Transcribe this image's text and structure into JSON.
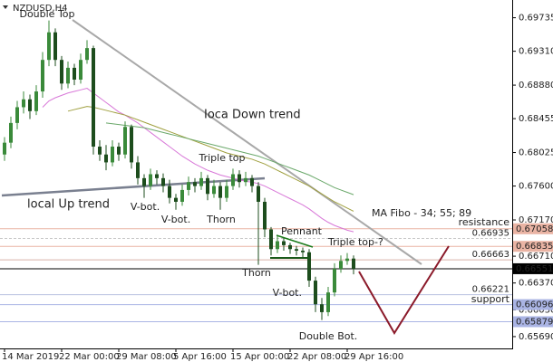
{
  "chart_data": {
    "type": "candlestick",
    "title": "NZDUSD,H4",
    "up_color": "#3a8a3a",
    "down_color": "#1d4d1d",
    "categories": [
      "14 Mar 2019",
      null,
      null,
      null,
      null,
      null,
      null,
      null,
      null,
      "22 Mar 00:00",
      null,
      null,
      null,
      null,
      null,
      null,
      null,
      null,
      "29 Mar 08:00",
      null,
      null,
      null,
      null,
      null,
      null,
      null,
      null,
      "5 Apr 16:00",
      null,
      null,
      null,
      null,
      null,
      null,
      null,
      null,
      "15 Apr 00:00",
      null,
      null,
      null,
      null,
      null,
      null,
      null,
      null,
      "22 Apr 08:00",
      null,
      null,
      null,
      null,
      null,
      null,
      null,
      null,
      "29 Apr 16:00",
      null
    ],
    "open": [
      0.68,
      0.6815,
      0.684,
      0.686,
      0.687,
      0.6855,
      0.688,
      0.692,
      0.6955,
      0.692,
      0.689,
      0.691,
      0.6895,
      0.692,
      0.6935,
      0.681,
      0.68,
      0.679,
      0.681,
      0.68,
      0.6835,
      0.679,
      0.677,
      0.676,
      0.6775,
      0.677,
      0.676,
      0.6745,
      0.674,
      0.6755,
      0.6765,
      0.676,
      0.677,
      0.675,
      0.676,
      0.6745,
      0.676,
      0.6775,
      0.6765,
      0.677,
      0.676,
      0.674,
      0.6705,
      0.668,
      0.669,
      0.6685,
      0.668,
      0.6678,
      0.6676,
      0.664,
      0.661,
      0.66,
      0.6625,
      0.6655,
      0.6665,
      0.6668
    ],
    "high": [
      0.6822,
      0.6848,
      0.6868,
      0.688,
      0.6876,
      0.6888,
      0.693,
      0.697,
      0.696,
      0.6925,
      0.6918,
      0.6915,
      0.6928,
      0.6945,
      0.6938,
      0.6818,
      0.6812,
      0.6818,
      0.6815,
      0.6842,
      0.6838,
      0.6798,
      0.6775,
      0.6782,
      0.678,
      0.6776,
      0.6768,
      0.675,
      0.6762,
      0.6772,
      0.677,
      0.6778,
      0.6774,
      0.6768,
      0.6765,
      0.6768,
      0.6782,
      0.678,
      0.6778,
      0.6774,
      0.6765,
      0.6745,
      0.6708,
      0.6698,
      0.6694,
      0.6688,
      0.6684,
      0.6682,
      0.668,
      0.6645,
      0.6618,
      0.6632,
      0.6662,
      0.6672,
      0.6675,
      0.6672
    ],
    "low": [
      0.6792,
      0.6808,
      0.6832,
      0.6852,
      0.6845,
      0.685,
      0.6872,
      0.6912,
      0.6912,
      0.6882,
      0.6884,
      0.6888,
      0.689,
      0.6915,
      0.68,
      0.6792,
      0.678,
      0.6785,
      0.6792,
      0.6795,
      0.6782,
      0.6762,
      0.6745,
      0.6755,
      0.6762,
      0.6752,
      0.6738,
      0.673,
      0.6735,
      0.6748,
      0.6752,
      0.6755,
      0.6742,
      0.6745,
      0.673,
      0.674,
      0.6755,
      0.6758,
      0.676,
      0.6752,
      0.666,
      0.6695,
      0.6672,
      0.6675,
      0.6678,
      0.6674,
      0.6672,
      0.667,
      0.6632,
      0.66,
      0.659,
      0.6595,
      0.662,
      0.665,
      0.666,
      0.6648
    ],
    "close": [
      0.6815,
      0.684,
      0.686,
      0.687,
      0.6855,
      0.688,
      0.692,
      0.6955,
      0.692,
      0.689,
      0.691,
      0.6895,
      0.692,
      0.6935,
      0.681,
      0.68,
      0.679,
      0.681,
      0.68,
      0.6835,
      0.679,
      0.677,
      0.676,
      0.6775,
      0.677,
      0.676,
      0.6745,
      0.674,
      0.6755,
      0.6765,
      0.676,
      0.677,
      0.675,
      0.676,
      0.6745,
      0.676,
      0.6775,
      0.6765,
      0.677,
      0.676,
      0.674,
      0.6705,
      0.668,
      0.669,
      0.6685,
      0.668,
      0.6678,
      0.6676,
      0.664,
      0.661,
      0.66,
      0.6625,
      0.6655,
      0.6665,
      0.6668,
      0.66551
    ],
    "series": [
      {
        "color": "#d878d8",
        "values": [
          null,
          null,
          null,
          null,
          null,
          null,
          0.686,
          0.6868,
          0.6872,
          0.6875,
          0.6878,
          0.688,
          0.6882,
          0.6884,
          0.6878,
          0.6872,
          0.6866,
          0.686,
          0.6854,
          0.685,
          0.6845,
          0.684,
          0.6834,
          0.6828,
          0.6822,
          0.6816,
          0.681,
          0.6804,
          0.6798,
          0.6793,
          0.6788,
          0.6784,
          0.678,
          0.6777,
          0.6774,
          0.6772,
          0.677,
          0.6768,
          0.6766,
          0.6765,
          0.6763,
          0.676,
          0.6756,
          0.6752,
          0.6748,
          0.6744,
          0.674,
          0.6736,
          0.6731,
          0.6725,
          0.6719,
          0.6714,
          0.671,
          0.6707,
          0.6704,
          0.6702
        ]
      },
      {
        "color": "#a0a040",
        "values": [
          null,
          null,
          null,
          null,
          null,
          null,
          null,
          null,
          null,
          null,
          0.6855,
          0.6857,
          0.6859,
          0.6861,
          0.686,
          0.6858,
          0.6856,
          0.6854,
          0.6852,
          0.685,
          0.6847,
          0.6844,
          0.6841,
          0.6838,
          0.6835,
          0.6832,
          0.6829,
          0.6826,
          0.6823,
          0.682,
          0.6817,
          0.6814,
          0.6811,
          0.6808,
          0.6805,
          0.6802,
          0.68,
          0.6798,
          0.6796,
          0.6794,
          0.6791,
          0.6788,
          0.6784,
          0.678,
          0.6776,
          0.6772,
          0.6768,
          0.6764,
          0.676,
          0.6755,
          0.675,
          0.6745,
          0.674,
          0.6736,
          0.6732,
          0.6728
        ]
      },
      {
        "color": "#6aa86a",
        "values": [
          null,
          null,
          null,
          null,
          null,
          null,
          null,
          null,
          null,
          null,
          null,
          null,
          null,
          null,
          null,
          null,
          0.684,
          0.6839,
          0.6838,
          0.6837,
          0.6836,
          0.6835,
          0.6834,
          0.6832,
          0.683,
          0.6828,
          0.6826,
          0.6824,
          0.6822,
          0.682,
          0.6818,
          0.6816,
          0.6814,
          0.6812,
          0.681,
          0.6808,
          0.6806,
          0.6804,
          0.6802,
          0.68,
          0.6798,
          0.6795,
          0.6792,
          0.6789,
          0.6786,
          0.6783,
          0.678,
          0.6777,
          0.6774,
          0.677,
          0.6766,
          0.6762,
          0.6758,
          0.6755,
          0.6752,
          0.6749
        ]
      }
    ],
    "ylim": [
      0.6554,
      0.6996
    ],
    "yticks": [
      0.69735,
      {
        "value": 0.6931,
        "label": "0.69310"
      },
      {
        "value": 0.6888,
        "label": "0.68880"
      },
      0.68455,
      0.68025,
      {
        "value": 0.676,
        "label": "0.67600"
      },
      {
        "value": 0.6717,
        "label": "0.67170"
      },
      {
        "value": 0.6671,
        "label": "0.66710"
      },
      {
        "value": 0.6637,
        "label": "0.66370"
      },
      {
        "value": 0.6603,
        "label": "0.66030"
      },
      {
        "value": 0.6569,
        "label": "0.65690"
      }
    ],
    "levels": [
      {
        "value": 0.67058,
        "color": "#eab4a4",
        "marker": "axis"
      },
      {
        "value": 0.66935,
        "color": "#c8c8c8",
        "marker": "inline"
      },
      {
        "value": 0.66835,
        "color": "#eab4a4",
        "marker": "axis"
      },
      {
        "value": 0.66663,
        "color": "#d8b0a8",
        "marker": "inline"
      },
      {
        "value": 0.66551,
        "color": "#000000",
        "marker": "axis"
      },
      {
        "value": 0.66221,
        "color": "#b8c0e0",
        "marker": "inline"
      },
      {
        "value": 0.66096,
        "color": "#aab4e4",
        "marker": "axis"
      },
      {
        "value": 0.65879,
        "color": "#aab4e4",
        "marker": "axis"
      }
    ],
    "annotations": [
      {
        "text": "Double Top",
        "color": "#1a7a1a"
      },
      {
        "text": "V-bot.",
        "color": "#1a5a1a"
      },
      {
        "text": "V-bot.",
        "color": "#1a5a1a"
      },
      {
        "text": "Thorn",
        "color": "#1a5a1a"
      },
      {
        "text": "Triple top",
        "color": "#1a7a1a"
      },
      {
        "text": "Thorn",
        "color": "#1a5a1a"
      },
      {
        "text": "Pennant",
        "color": "#1a7a1a"
      },
      {
        "text": "Triple top-?",
        "color": "#1a7a1a"
      },
      {
        "text": "V-bot.",
        "color": "#1a5a1a"
      },
      {
        "text": "Double Bot.",
        "color": "#1a5a1a"
      },
      {
        "text": "Ioca Down trend",
        "color": "#7a8a9a"
      },
      {
        "text": "local Up trend",
        "color": "#5a6a8a"
      },
      {
        "text": "MA Fibo - 34; 55; 89",
        "color": "#b0b0b0"
      },
      {
        "text": "resistance",
        "color": "#e8a8a0"
      },
      {
        "text": "support",
        "color": "#9aa6d8"
      }
    ]
  }
}
